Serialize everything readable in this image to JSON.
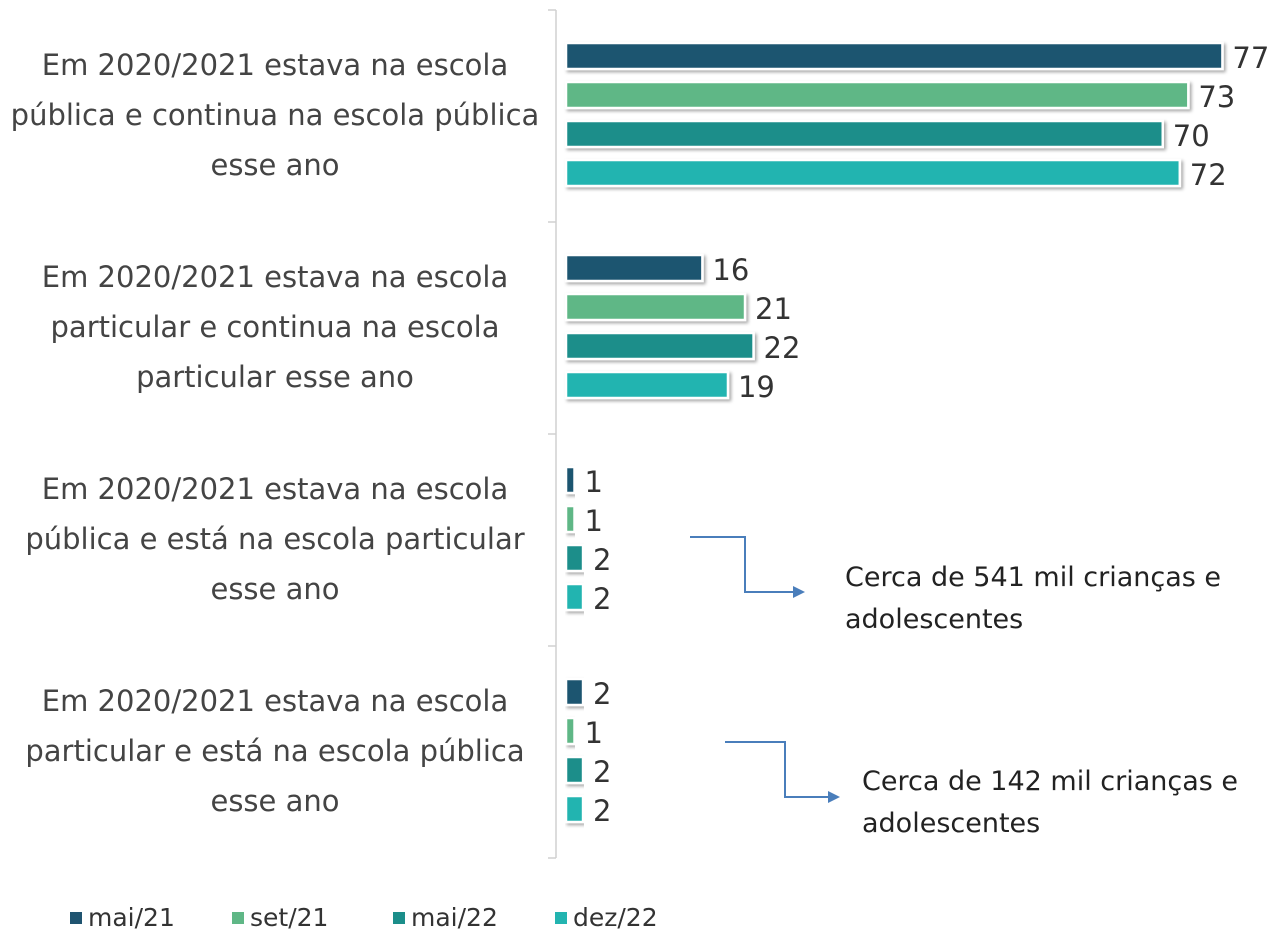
{
  "chart_data": {
    "type": "bar",
    "orientation": "horizontal",
    "categories": [
      "Em 2020/2021 estava na escola pública e continua na escola pública esse ano",
      "Em 2020/2021 estava na escola particular e continua na escola particular esse ano",
      "Em 2020/2021 estava na escola pública e está na escola particular esse ano",
      "Em 2020/2021 estava na escola particular e está na escola pública esse ano"
    ],
    "series": [
      {
        "name": "mai/21",
        "color": "#1f5470",
        "values": [
          77,
          16,
          1,
          2
        ]
      },
      {
        "name": "set/21",
        "color": "#5fb786",
        "values": [
          73,
          21,
          1,
          1
        ]
      },
      {
        "name": "mai/22",
        "color": "#1b8e8a",
        "values": [
          70,
          22,
          2,
          2
        ]
      },
      {
        "name": "dez/22",
        "color": "#23b4b0",
        "values": [
          72,
          19,
          2,
          2
        ]
      }
    ],
    "xlim": [
      0,
      80
    ],
    "annotations": [
      "Cerca de 541 mil crianças e adolescentes",
      "Cerca de 142 mil crianças e adolescentes"
    ],
    "legend": "bottom"
  }
}
